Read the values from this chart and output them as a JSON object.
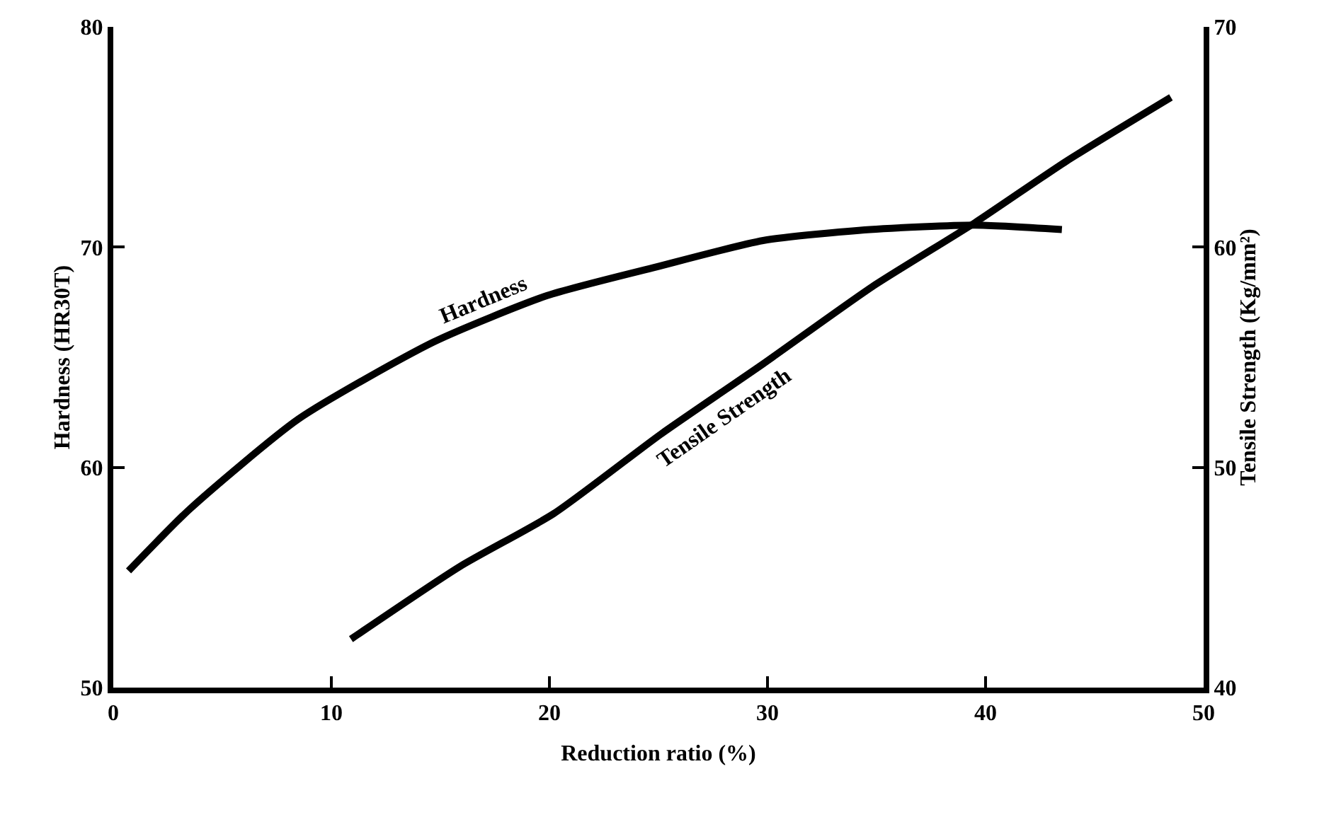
{
  "chart_data": {
    "type": "line",
    "xlabel": "Reduction ratio (%)",
    "ylabel": "Hardness (HR30T)",
    "y2label": "Tensile Strength (Kg/mm²)",
    "xlim": [
      0,
      50
    ],
    "xticks": [
      0,
      10,
      20,
      30,
      40,
      50
    ],
    "ylim": [
      50,
      80
    ],
    "yticks": [
      50,
      60,
      70,
      80
    ],
    "y2lim": [
      40,
      70
    ],
    "y2ticks": [
      40,
      50,
      60,
      70
    ],
    "legend": false,
    "marker": "none",
    "line_style": "solid",
    "series": [
      {
        "name": "Hardness",
        "color": "#000000",
        "x": [
          0.7,
          3.5,
          8.5,
          14.7,
          19.9,
          24.9,
          29.8,
          34.7,
          39.5,
          43.5
        ],
        "values": [
          55.3,
          58.1,
          62.2,
          65.7,
          67.8,
          69.1,
          70.3,
          70.8,
          71.0,
          70.8
        ]
      },
      {
        "name": "Tensile Strength",
        "color": "#000000",
        "axis": "y2",
        "x": [
          10.9,
          15.9,
          20.2,
          25.1,
          29.8,
          34.8,
          39.5,
          43.7,
          48.5
        ],
        "values": [
          42.2,
          45.5,
          47.9,
          51.5,
          54.7,
          58.2,
          61.1,
          63.9,
          66.8
        ]
      }
    ]
  }
}
